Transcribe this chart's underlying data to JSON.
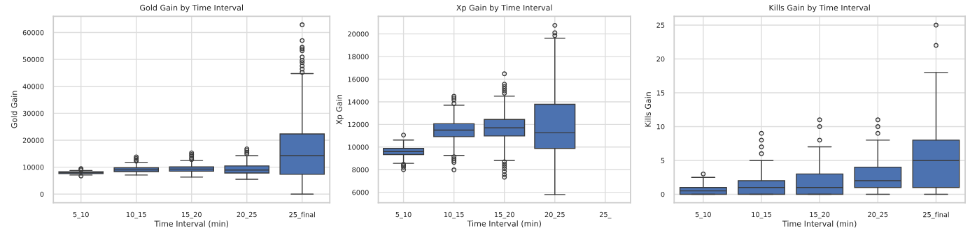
{
  "chart_data": [
    {
      "type": "box",
      "title": "Gold Gain by Time Interval",
      "xlabel": "Time Interval (min)",
      "ylabel": "Gold Gain",
      "categories": [
        "5_10",
        "10_15",
        "15_20",
        "20_25",
        "25_final"
      ],
      "color": "#4c72b0",
      "grid": true,
      "ylim": [
        -3200,
        66000
      ],
      "yticks": [
        0,
        10000,
        20000,
        30000,
        40000,
        50000,
        60000
      ],
      "boxes": [
        {
          "low": 7080,
          "q1": 7600,
          "median": 7950,
          "q3": 8300,
          "high": 8760,
          "outliers": [
            9440,
            9000,
            6740
          ]
        },
        {
          "low": 7080,
          "q1": 8340,
          "median": 9010,
          "q3": 9770,
          "high": 11800,
          "outliers": [
            13800,
            13200,
            12600,
            12200
          ]
        },
        {
          "low": 6320,
          "q1": 8510,
          "median": 9270,
          "q3": 10110,
          "high": 12470,
          "outliers": [
            15300,
            14700,
            14100,
            13400,
            12800
          ]
        },
        {
          "low": 5480,
          "q1": 7830,
          "median": 8930,
          "q3": 10450,
          "high": 14240,
          "outliers": [
            16800,
            16200,
            15500,
            14900
          ]
        },
        {
          "low": 0,
          "q1": 7330,
          "median": 14240,
          "q3": 22330,
          "high": 44740,
          "outliers": [
            62850,
            57000,
            54500,
            53900,
            53200,
            50900,
            49600,
            48800,
            47600,
            46400,
            45200
          ]
        }
      ]
    },
    {
      "type": "box",
      "title": "Xp Gain by Time Interval",
      "xlabel": "Time Interval (min)",
      "ylabel": "Xp Gain",
      "categories": [
        "5_10",
        "10_15",
        "15_20",
        "20_25",
        "25_"
      ],
      "color": "#4c72b0",
      "grid": true,
      "ylim": [
        5080,
        21560
      ],
      "yticks": [
        6000,
        8000,
        10000,
        12000,
        14000,
        16000,
        18000,
        20000
      ],
      "boxes": [
        {
          "low": 8560,
          "q1": 9340,
          "median": 9600,
          "q3": 9880,
          "high": 10620,
          "outliers": [
            11060,
            8480,
            8360,
            8220,
            8000
          ]
        },
        {
          "low": 9260,
          "q1": 10920,
          "median": 11500,
          "q3": 12060,
          "high": 13700,
          "outliers": [
            14500,
            14340,
            14160,
            13840,
            9140,
            8960,
            8800,
            8640,
            7980
          ]
        },
        {
          "low": 8820,
          "q1": 10980,
          "median": 11700,
          "q3": 12440,
          "high": 14500,
          "outliers": [
            16480,
            15560,
            15360,
            15160,
            14960,
            14760,
            8700,
            8500,
            8300,
            8100,
            7840,
            7560,
            7340
          ]
        },
        {
          "low": 5800,
          "q1": 9880,
          "median": 11260,
          "q3": 13780,
          "high": 19620,
          "outliers": [
            20760,
            20100,
            19860
          ]
        },
        null
      ]
    },
    {
      "type": "box",
      "title": "Kills Gain by Time Interval",
      "xlabel": "Time Interval (min)",
      "ylabel": "Kills Gain",
      "categories": [
        "5_10",
        "10_15",
        "15_20",
        "20_25",
        "25_final"
      ],
      "color": "#4c72b0",
      "grid": true,
      "ylim": [
        -1.25,
        26.3
      ],
      "yticks": [
        0,
        5,
        10,
        15,
        20,
        25
      ],
      "boxes": [
        {
          "low": 0,
          "q1": 0,
          "median": 0.5,
          "q3": 1,
          "high": 2.5,
          "outliers": [
            3
          ]
        },
        {
          "low": 0,
          "q1": 0,
          "median": 1,
          "q3": 2,
          "high": 5,
          "outliers": [
            6,
            7,
            8,
            9
          ]
        },
        {
          "low": 0,
          "q1": 0,
          "median": 1,
          "q3": 3,
          "high": 7,
          "outliers": [
            8,
            10,
            11
          ]
        },
        {
          "low": 0,
          "q1": 1,
          "median": 2,
          "q3": 4,
          "high": 8,
          "outliers": [
            9,
            10,
            11
          ]
        },
        {
          "low": 0,
          "q1": 1,
          "median": 5,
          "q3": 8,
          "high": 18,
          "outliers": [
            22,
            25
          ]
        }
      ]
    }
  ]
}
